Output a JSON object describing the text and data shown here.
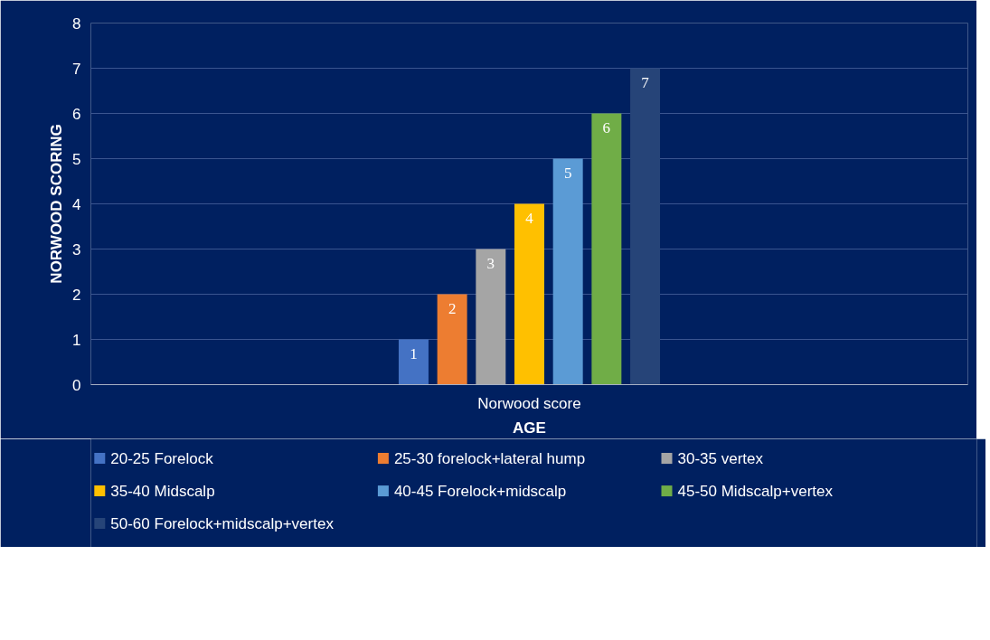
{
  "chart_data": {
    "type": "bar",
    "categories": [
      "Norwood score"
    ],
    "xlabel": "AGE",
    "ylabel": "NORWOOD SCORING",
    "ylim": [
      0,
      8
    ],
    "yticks": [
      0,
      1,
      2,
      3,
      4,
      5,
      6,
      7,
      8
    ],
    "grid": "y",
    "legend": "bottom",
    "data_labels": true,
    "series": [
      {
        "name": "20-25 Forelock",
        "color": "#4472c4",
        "values": [
          1
        ]
      },
      {
        "name": "25-30 forelock+lateral hump",
        "color": "#ed7d31",
        "values": [
          2
        ]
      },
      {
        "name": "30-35 vertex",
        "color": "#a5a5a5",
        "values": [
          3
        ]
      },
      {
        "name": "35-40 Midscalp",
        "color": "#ffc000",
        "values": [
          4
        ]
      },
      {
        "name": "40-45 Forelock+midscalp",
        "color": "#5b9bd5",
        "values": [
          5
        ]
      },
      {
        "name": "45-50 Midscalp+vertex",
        "color": "#70ad47",
        "values": [
          6
        ]
      },
      {
        "name": "50-60 Forelock+midscalp+vertex",
        "color": "#264478",
        "values": [
          7
        ]
      }
    ]
  }
}
